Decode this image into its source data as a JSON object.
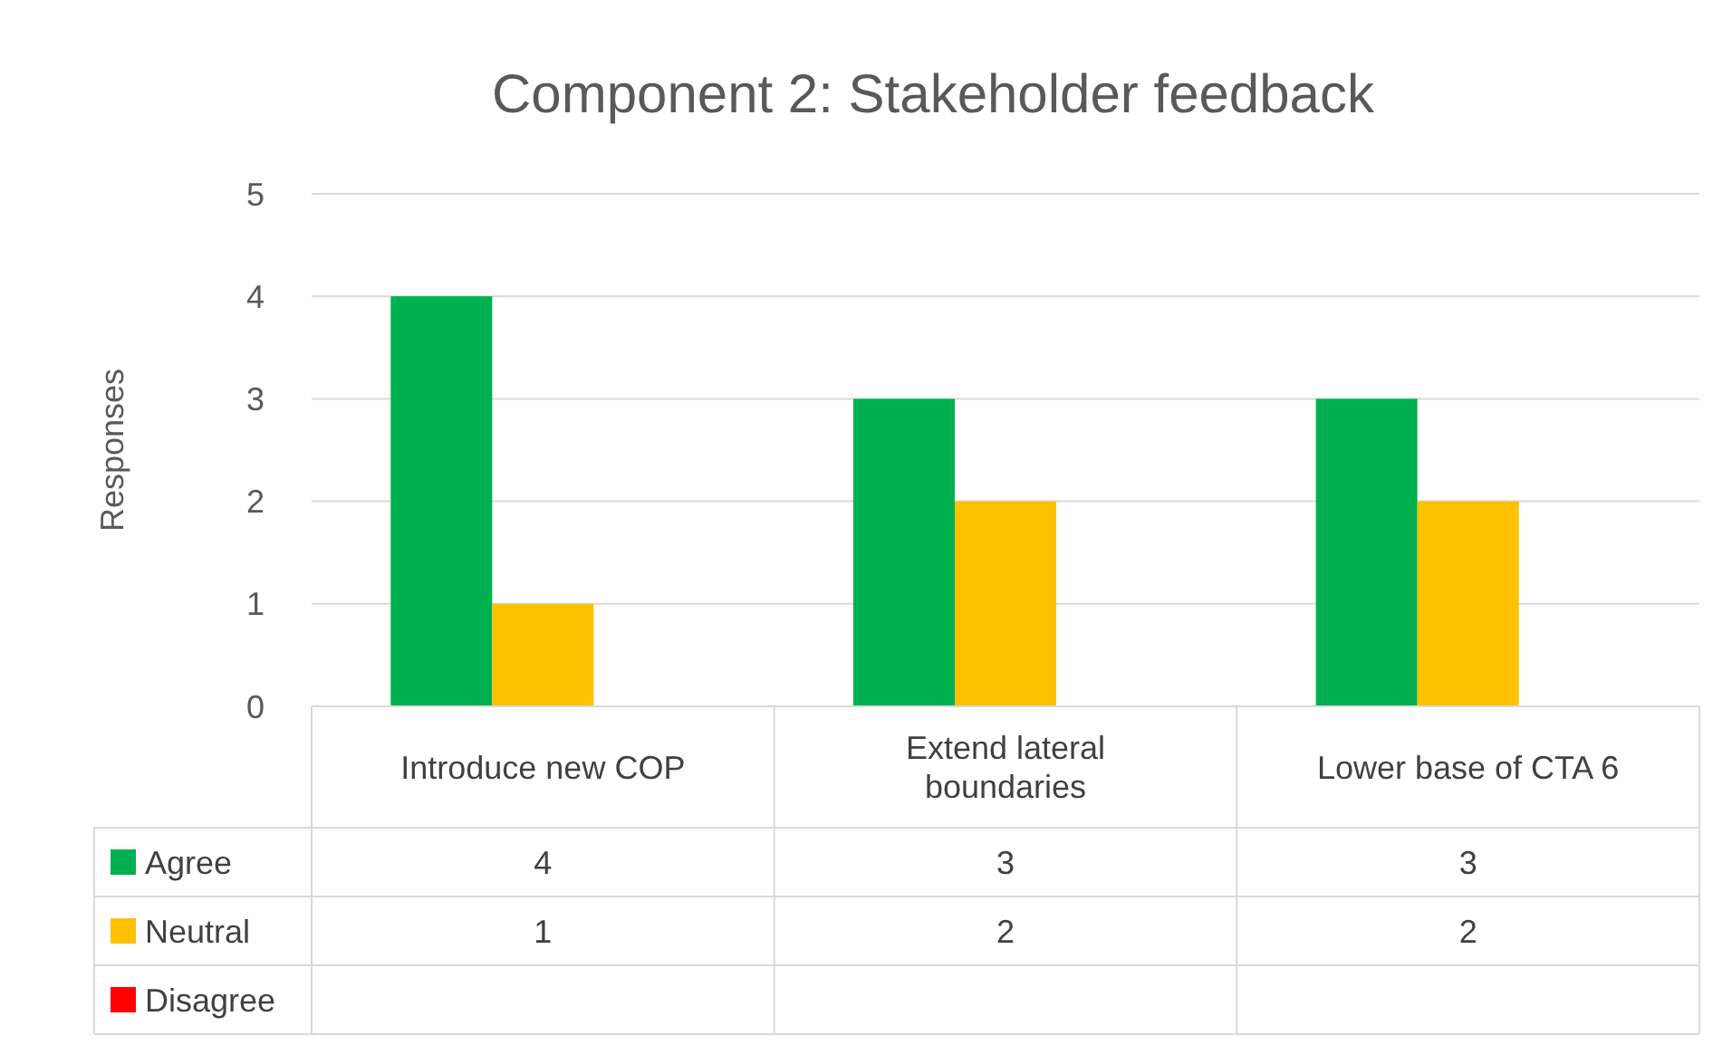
{
  "chart_data": {
    "type": "bar",
    "title": "Component 2: Stakeholder feedback",
    "ylabel": "Responses",
    "categories": [
      "Introduce new COP",
      "Extend lateral boundaries",
      "Lower base of CTA 6"
    ],
    "series": [
      {
        "name": "Agree",
        "color": "#00b050",
        "values": [
          4,
          3,
          3
        ]
      },
      {
        "name": "Neutral",
        "color": "#ffc000",
        "values": [
          1,
          2,
          2
        ]
      },
      {
        "name": "Disagree",
        "color": "#ff0000",
        "values": [
          null,
          null,
          null
        ]
      }
    ],
    "ylim": [
      0,
      5
    ],
    "yticks": [
      0,
      1,
      2,
      3,
      4,
      5
    ],
    "grid": "y",
    "legend": "bottom",
    "data_labels": true
  }
}
